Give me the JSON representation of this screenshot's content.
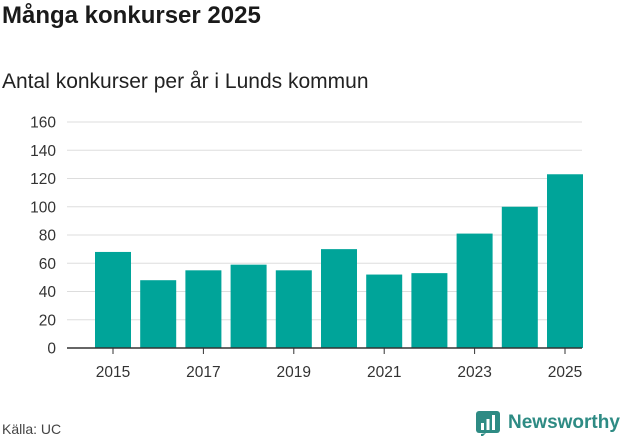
{
  "header": {
    "title": "Många konkurser 2025",
    "subtitle": "Antal konkurser per år i Lunds kommun"
  },
  "footer": {
    "source": "Källa: UC",
    "logo_text": "Newsworthy",
    "logo_icon": "newsworthy-chart-icon",
    "logo_color": "#2e8b84"
  },
  "chart_data": {
    "type": "bar",
    "title": "Många konkurser 2025",
    "subtitle": "Antal konkurser per år i Lunds kommun",
    "xlabel": "",
    "ylabel": "",
    "categories": [
      "2015",
      "2016",
      "2017",
      "2018",
      "2019",
      "2020",
      "2021",
      "2022",
      "2023",
      "2024",
      "2025"
    ],
    "values": [
      68,
      48,
      55,
      59,
      55,
      70,
      52,
      53,
      81,
      100,
      123
    ],
    "x_tick_labels": [
      "2015",
      "2017",
      "2019",
      "2021",
      "2023",
      "2025"
    ],
    "y_ticks": [
      0,
      20,
      40,
      60,
      80,
      100,
      120,
      140,
      160
    ],
    "ylim": [
      0,
      160
    ],
    "grid": true,
    "legend": "none",
    "bar_color": "#00a499",
    "grid_color": "#dddddd",
    "axis_color": "#333333"
  }
}
